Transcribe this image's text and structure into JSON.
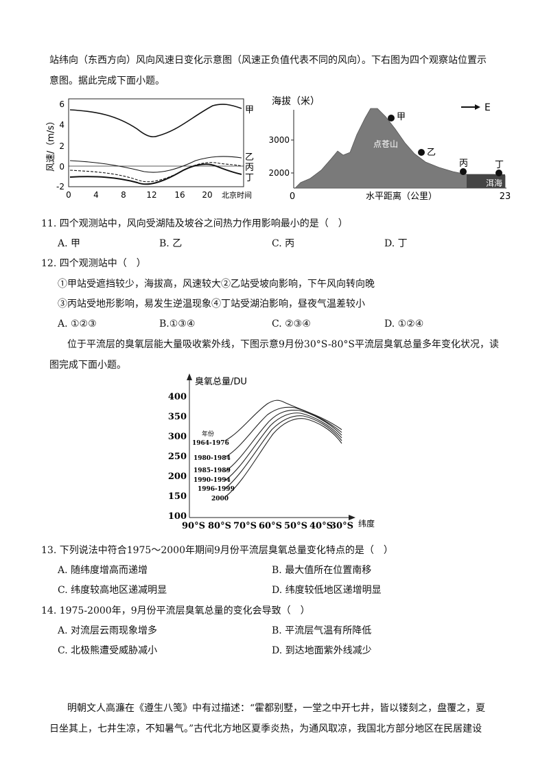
{
  "intro1": {
    "line1": "站纬向（东西方向）风向风速日变化示意图（风速正负值代表不同的风向）。下右图为四个观察站位置示",
    "line2": "意图。据此完成下面小题。"
  },
  "wind_chart": {
    "ylabel": "风速/（m/s）",
    "yticks": [
      "6",
      "4",
      "2",
      "0",
      "-2"
    ],
    "xticks": [
      "0",
      "4",
      "8",
      "12",
      "16",
      "20"
    ],
    "xlabel": "北京时间",
    "series_labels": [
      "甲",
      "乙",
      "丙",
      "丁"
    ]
  },
  "elev_chart": {
    "ylabel": "海拔（米）",
    "yticks": [
      "3000",
      "2000"
    ],
    "xlabel": "水平距离（公里）",
    "x_start": "0",
    "x_end": "23",
    "mountain": "点苍山",
    "lake": "洱海",
    "direction": "E",
    "stations": [
      "甲",
      "乙",
      "丙",
      "丁"
    ]
  },
  "q11": {
    "stem": "11. 四个观测站中，风向受湖陆及坡谷之间热力作用影响最小的是（　）",
    "options": [
      "A. 甲",
      "B. 乙",
      "C. 丙",
      "D. 丁"
    ]
  },
  "q12": {
    "stem": "12. 四个观测站中（　）",
    "line1": "①甲站受遮挡较少，海拔高，风速较大②乙站受坡向影响，下午风向转向晚",
    "line2": "③丙站受地形影响，易发生逆温现象④丁站受湖泊影响，昼夜气温差较小",
    "options": [
      "A. ①②③",
      "B.①③④",
      "C. ②③④",
      "D. ①②④"
    ]
  },
  "intro2": {
    "line1": "位于平流层的臭氧层能大量吸收紫外线，下图示意9月份30°S-80°S平流层臭氧总量多年变化状况，读",
    "line2": "图完成下面小题。"
  },
  "ozone_chart": {
    "ylabel": "臭氧总量/DU",
    "xlabel": "纬度",
    "legend_title": "年份",
    "yticks": [
      "400",
      "350",
      "300",
      "250",
      "200",
      "150",
      "100"
    ],
    "xticks": [
      "90°S",
      "80°S",
      "70°S",
      "60°S",
      "50°S",
      "40°S",
      "30°S"
    ],
    "series": [
      "1964-1976",
      "1980-1984",
      "1985-1989",
      "1990-1994",
      "1996-1999",
      "2000"
    ]
  },
  "q13": {
    "stem": "13. 下列说法中符合1975～2000年期间9月份平流层臭氧总量变化特点的是（　）",
    "options": [
      "A. 随纬度增高而递增",
      "B. 最大值所在位置南移",
      "C. 纬度较高地区递减明显",
      "D. 纬度较低地区递增明显"
    ]
  },
  "q14": {
    "stem": "14. 1975-2000年，9月份平流层臭氧总量的变化会导致（　）",
    "options": [
      "A. 对流层云雨现象增多",
      "B. 平流层气温有所降低",
      "C. 北极熊遭受威胁减小",
      "D. 到达地面紫外线减少"
    ]
  },
  "intro3": {
    "line1": "明朝文人高濂在《遵生八笺》中有过描述：“霍都别墅，一堂之中开七井，皆以镂刻之，盘覆之，夏",
    "line2": "日坐其上，七井生凉，不知暑气。”古代北方地区夏季炎热，为通风取凉，我国北方部分地区在民居建设"
  }
}
